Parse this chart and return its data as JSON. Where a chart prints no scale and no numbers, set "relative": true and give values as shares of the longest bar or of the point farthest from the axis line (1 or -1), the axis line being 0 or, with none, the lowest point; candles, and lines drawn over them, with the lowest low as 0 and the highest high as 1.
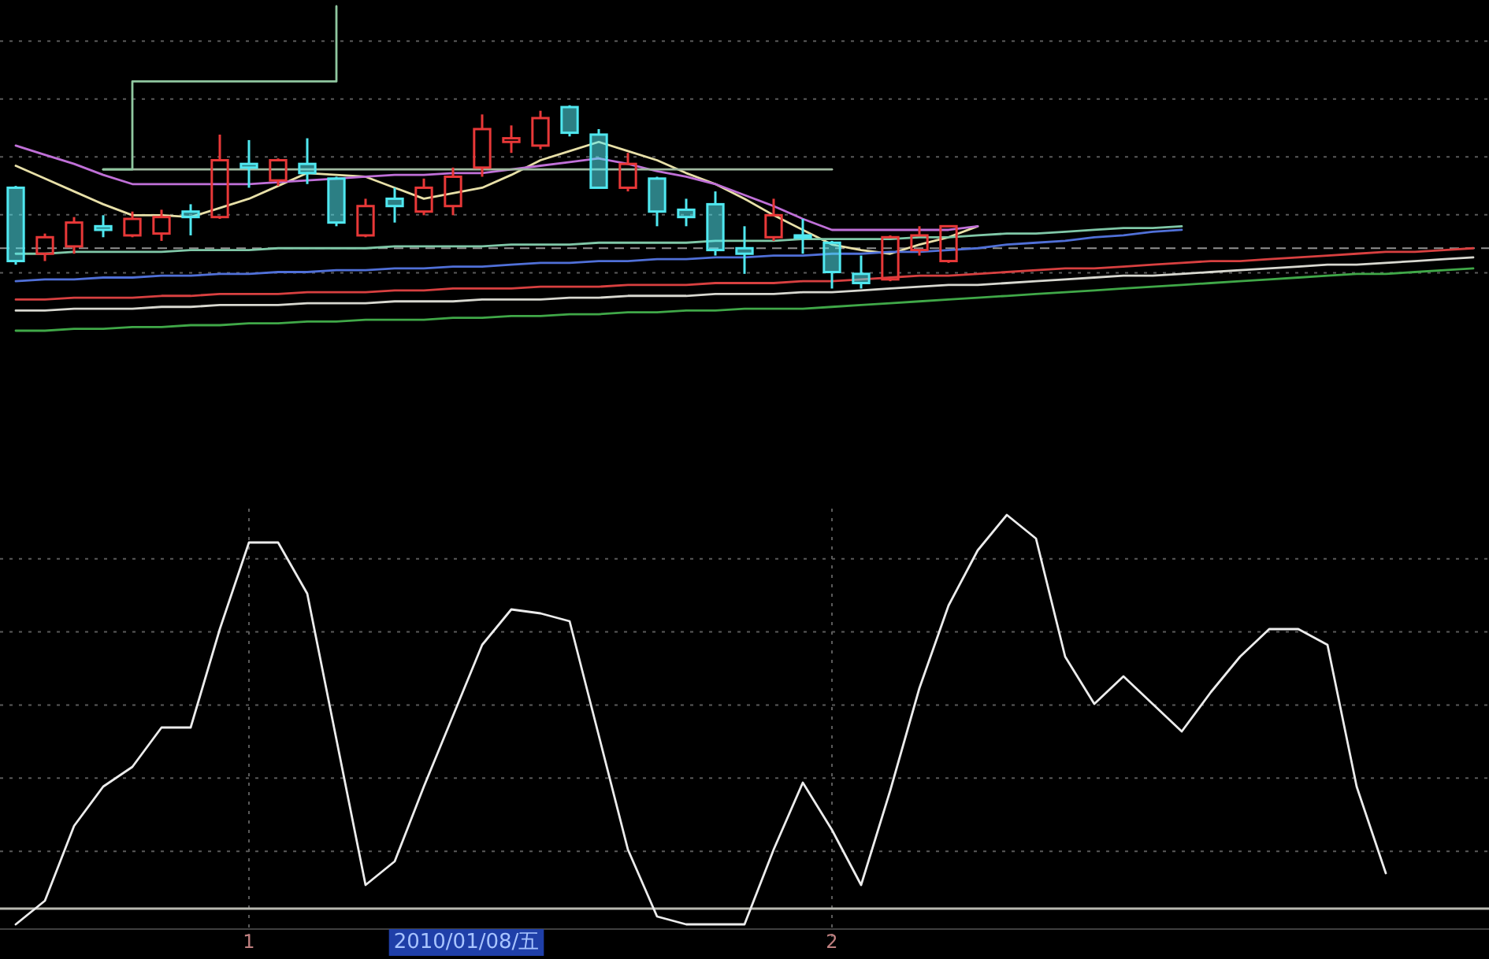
{
  "chart_data": [
    {
      "type": "candlestick",
      "relative": true,
      "tick_labels": false,
      "grid": true,
      "categories": [
        null,
        null,
        null,
        null,
        null,
        null,
        null,
        null,
        null,
        null,
        null,
        null,
        null,
        null,
        null,
        null,
        null,
        null,
        null,
        null,
        null,
        null,
        null,
        null,
        null,
        null,
        null,
        null,
        null,
        null,
        null,
        null,
        null,
        null,
        null,
        null,
        null,
        null,
        null,
        null,
        null,
        null,
        null,
        null,
        null,
        null,
        null,
        null,
        null,
        null,
        null
      ],
      "colors": [
        "#50e8f0",
        "#e83838",
        "#e83838",
        "#50e8f0",
        "#e83838",
        "#e83838",
        "#50e8f0",
        "#e83838",
        "#50e8f0",
        "#e83838",
        "#50e8f0",
        "#50e8f0",
        "#e83838",
        "#50e8f0",
        "#e83838",
        "#e83838",
        "#e83838",
        "#e83838",
        "#e83838",
        "#50e8f0",
        "#50e8f0",
        "#e83838",
        "#50e8f0",
        "#50e8f0",
        "#50e8f0",
        "#50e8f0",
        "#e83838",
        "#50e8f0",
        "#50e8f0",
        "#50e8f0",
        "#e83838",
        "#e83838",
        "#e83838",
        null,
        null,
        null,
        null,
        null,
        null,
        null,
        null,
        null,
        null,
        null,
        null,
        null,
        null,
        null,
        null,
        null,
        null
      ],
      "ohlc": [
        [
          0.55,
          0.56,
          0.13,
          0.15
        ],
        [
          0.19,
          0.3,
          0.15,
          0.28
        ],
        [
          0.23,
          0.39,
          0.19,
          0.36
        ],
        [
          0.34,
          0.4,
          0.28,
          0.32
        ],
        [
          0.29,
          0.42,
          0.28,
          0.38
        ],
        [
          0.3,
          0.43,
          0.26,
          0.39
        ],
        [
          0.42,
          0.46,
          0.29,
          0.39
        ],
        [
          0.39,
          0.84,
          0.38,
          0.7
        ],
        [
          0.68,
          0.81,
          0.55,
          0.66
        ],
        [
          0.59,
          0.71,
          0.56,
          0.7
        ],
        [
          0.68,
          0.82,
          0.57,
          0.63
        ],
        [
          0.6,
          0.61,
          0.34,
          0.36
        ],
        [
          0.29,
          0.49,
          0.28,
          0.45
        ],
        [
          0.49,
          0.55,
          0.36,
          0.45
        ],
        [
          0.42,
          0.6,
          0.4,
          0.55
        ],
        [
          0.45,
          0.66,
          0.4,
          0.61
        ],
        [
          0.66,
          0.95,
          0.61,
          0.87
        ],
        [
          0.8,
          0.89,
          0.74,
          0.82
        ],
        [
          0.78,
          0.97,
          0.76,
          0.93
        ],
        [
          0.99,
          1.0,
          0.83,
          0.85
        ],
        [
          0.84,
          0.87,
          0.55,
          0.55
        ],
        [
          0.55,
          0.74,
          0.53,
          0.68
        ],
        [
          0.6,
          0.61,
          0.34,
          0.42
        ],
        [
          0.43,
          0.49,
          0.34,
          0.39
        ],
        [
          0.46,
          0.53,
          0.18,
          0.21
        ],
        [
          0.22,
          0.34,
          0.08,
          0.19
        ],
        [
          0.28,
          0.49,
          0.26,
          0.4
        ],
        [
          0.29,
          0.38,
          0.19,
          0.28
        ],
        [
          0.25,
          0.26,
          0.0,
          0.09
        ],
        [
          0.08,
          0.18,
          0.0,
          0.03
        ],
        [
          0.05,
          0.29,
          0.04,
          0.28
        ],
        [
          0.21,
          0.34,
          0.18,
          0.29
        ],
        [
          0.15,
          0.34,
          0.14,
          0.34
        ],
        null,
        null,
        null,
        null,
        null,
        null,
        null,
        null,
        null,
        null,
        null,
        null,
        null,
        null,
        null,
        null,
        null,
        null
      ],
      "series": [
        {
          "type": "line",
          "color": "#e8e0a8",
          "values": [
            0.67,
            0.6,
            0.53,
            0.46,
            0.4,
            0.4,
            0.39,
            0.44,
            0.49,
            0.56,
            0.63,
            0.62,
            0.61,
            0.55,
            0.49,
            0.52,
            0.55,
            0.62,
            0.7,
            0.75,
            0.8,
            0.75,
            0.7,
            0.63,
            0.57,
            0.49,
            0.4,
            0.32,
            0.24,
            0.21,
            0.19,
            0.24,
            0.28,
            0.34,
            null,
            null,
            null,
            null,
            null,
            null,
            null,
            null,
            null,
            null,
            null,
            null,
            null,
            null,
            null,
            null,
            null
          ]
        },
        {
          "type": "line",
          "color": "#c070d8",
          "values": [
            0.78,
            0.73,
            0.68,
            0.62,
            0.57,
            0.57,
            0.57,
            0.57,
            0.57,
            0.58,
            0.59,
            0.6,
            0.61,
            0.62,
            0.62,
            0.63,
            0.63,
            0.65,
            0.67,
            0.69,
            0.71,
            0.68,
            0.64,
            0.61,
            0.57,
            0.51,
            0.45,
            0.38,
            0.32,
            0.32,
            0.32,
            0.32,
            0.32,
            0.34,
            null,
            null,
            null,
            null,
            null,
            null,
            null,
            null,
            null,
            null,
            null,
            null,
            null,
            null,
            null,
            null,
            null
          ]
        },
        {
          "type": "line",
          "color": "#80c8a8",
          "values": [
            0.19,
            0.19,
            0.2,
            0.2,
            0.2,
            0.2,
            0.21,
            0.21,
            0.21,
            0.22,
            0.22,
            0.22,
            0.22,
            0.23,
            0.23,
            0.23,
            0.23,
            0.24,
            0.24,
            0.24,
            0.25,
            0.25,
            0.25,
            0.25,
            0.26,
            0.26,
            0.26,
            0.27,
            0.27,
            0.27,
            0.27,
            0.28,
            0.28,
            0.29,
            0.3,
            0.3,
            0.31,
            0.32,
            0.33,
            0.33,
            0.34,
            null,
            null,
            null,
            null,
            null,
            null,
            null,
            null,
            null,
            null
          ]
        },
        {
          "type": "line",
          "color": "#5070d8",
          "values": [
            0.04,
            0.05,
            0.05,
            0.06,
            0.06,
            0.07,
            0.07,
            0.08,
            0.08,
            0.09,
            0.09,
            0.1,
            0.1,
            0.11,
            0.11,
            0.12,
            0.12,
            0.13,
            0.14,
            0.14,
            0.15,
            0.15,
            0.16,
            0.16,
            0.17,
            0.17,
            0.18,
            0.18,
            0.19,
            0.19,
            0.2,
            0.2,
            0.21,
            0.22,
            0.24,
            0.25,
            0.26,
            0.28,
            0.29,
            0.31,
            0.32,
            null,
            null,
            null,
            null,
            null,
            null,
            null,
            null,
            null,
            null
          ]
        },
        {
          "type": "line",
          "color": "#d84040",
          "values": [
            -0.06,
            -0.06,
            -0.05,
            -0.05,
            -0.05,
            -0.04,
            -0.04,
            -0.03,
            -0.03,
            -0.03,
            -0.02,
            -0.02,
            -0.02,
            -0.01,
            -0.01,
            0.0,
            0.0,
            0.0,
            0.01,
            0.01,
            0.01,
            0.02,
            0.02,
            0.02,
            0.03,
            0.03,
            0.03,
            0.04,
            0.04,
            0.05,
            0.06,
            0.07,
            0.07,
            0.08,
            0.09,
            0.1,
            0.11,
            0.11,
            0.12,
            0.13,
            0.14,
            0.15,
            0.15,
            0.16,
            0.17,
            0.18,
            0.19,
            0.2,
            0.2,
            0.21,
            0.22
          ]
        },
        {
          "type": "line",
          "color": "#d8d8d0",
          "values": [
            -0.12,
            -0.12,
            -0.11,
            -0.11,
            -0.11,
            -0.1,
            -0.1,
            -0.09,
            -0.09,
            -0.09,
            -0.08,
            -0.08,
            -0.08,
            -0.07,
            -0.07,
            -0.07,
            -0.06,
            -0.06,
            -0.06,
            -0.05,
            -0.05,
            -0.04,
            -0.04,
            -0.04,
            -0.03,
            -0.03,
            -0.03,
            -0.02,
            -0.02,
            -0.01,
            0.0,
            0.01,
            0.02,
            0.02,
            0.03,
            0.04,
            0.05,
            0.06,
            0.07,
            0.07,
            0.08,
            0.09,
            0.1,
            0.11,
            0.12,
            0.13,
            0.13,
            0.14,
            0.15,
            0.16,
            0.17
          ]
        },
        {
          "type": "line",
          "color": "#40a848",
          "values": [
            -0.23,
            -0.23,
            -0.22,
            -0.22,
            -0.21,
            -0.21,
            -0.2,
            -0.2,
            -0.19,
            -0.19,
            -0.18,
            -0.18,
            -0.17,
            -0.17,
            -0.17,
            -0.16,
            -0.16,
            -0.15,
            -0.15,
            -0.14,
            -0.14,
            -0.13,
            -0.13,
            -0.12,
            -0.12,
            -0.11,
            -0.11,
            -0.11,
            -0.1,
            -0.09,
            -0.08,
            -0.07,
            -0.06,
            -0.05,
            -0.04,
            -0.03,
            -0.02,
            -0.01,
            0.0,
            0.01,
            0.02,
            0.03,
            0.04,
            0.05,
            0.06,
            0.07,
            0.08,
            0.08,
            0.09,
            0.1,
            0.11
          ]
        },
        {
          "type": "line",
          "color": "#a0b8a0",
          "values": [
            null,
            null,
            null,
            0.65,
            0.65,
            0.65,
            0.65,
            0.65,
            0.65,
            0.65,
            0.65,
            0.65,
            0.65,
            0.65,
            0.65,
            0.65,
            0.65,
            0.65,
            0.65,
            0.65,
            0.65,
            0.65,
            0.65,
            0.65,
            0.65,
            0.65,
            0.65,
            0.65,
            0.65,
            null,
            null,
            null,
            null,
            null,
            null,
            null,
            null,
            null,
            null,
            null,
            null,
            null,
            null,
            null,
            null,
            null,
            null,
            null,
            null,
            null,
            null
          ]
        },
        {
          "type": "step",
          "color": "#90c8a0",
          "values": [
            null,
            null,
            null,
            0.65,
            1.13,
            1.13,
            1.13,
            1.13,
            1.13,
            1.13,
            1.13,
            1.54,
            null,
            null,
            null,
            null,
            null,
            null,
            null,
            null,
            null,
            null,
            null,
            null,
            null,
            null,
            null,
            null,
            null,
            null,
            null,
            null,
            null,
            null,
            null,
            null,
            null,
            null,
            null,
            null,
            null,
            null,
            null,
            null,
            null,
            null,
            null,
            null,
            null,
            null,
            null
          ]
        }
      ],
      "ref_lines": [
        {
          "axis": "y",
          "value": 0.22,
          "color": "#909090",
          "line_style": "dashed"
        }
      ]
    },
    {
      "type": "line",
      "relative": true,
      "tick_labels": "x",
      "grid": true,
      "categories": [
        null,
        null,
        null,
        null,
        null,
        null,
        null,
        null,
        "1",
        null,
        null,
        null,
        null,
        null,
        null,
        null,
        null,
        null,
        null,
        null,
        null,
        null,
        null,
        null,
        null,
        null,
        null,
        null,
        "2",
        null,
        null,
        null,
        null,
        null,
        null,
        null,
        null,
        null,
        null,
        null,
        null,
        null,
        null,
        null,
        null,
        null,
        null,
        null,
        null,
        null,
        null
      ],
      "series": [
        {
          "color": "#ececec",
          "values": [
            -0.04,
            0.02,
            0.21,
            0.31,
            0.36,
            0.46,
            0.46,
            0.71,
            0.93,
            0.93,
            0.8,
            0.43,
            0.06,
            0.12,
            0.31,
            0.49,
            0.67,
            0.76,
            0.75,
            0.73,
            0.44,
            0.15,
            -0.02,
            -0.04,
            -0.04,
            -0.04,
            0.15,
            0.32,
            0.2,
            0.06,
            0.3,
            0.56,
            0.77,
            0.91,
            1.0,
            0.94,
            0.64,
            0.52,
            0.59,
            0.52,
            0.45,
            0.55,
            0.64,
            0.71,
            0.71,
            0.67,
            0.31,
            0.09,
            null,
            null,
            null
          ]
        }
      ],
      "annotations": [
        "2010/01/08/五"
      ]
    }
  ]
}
